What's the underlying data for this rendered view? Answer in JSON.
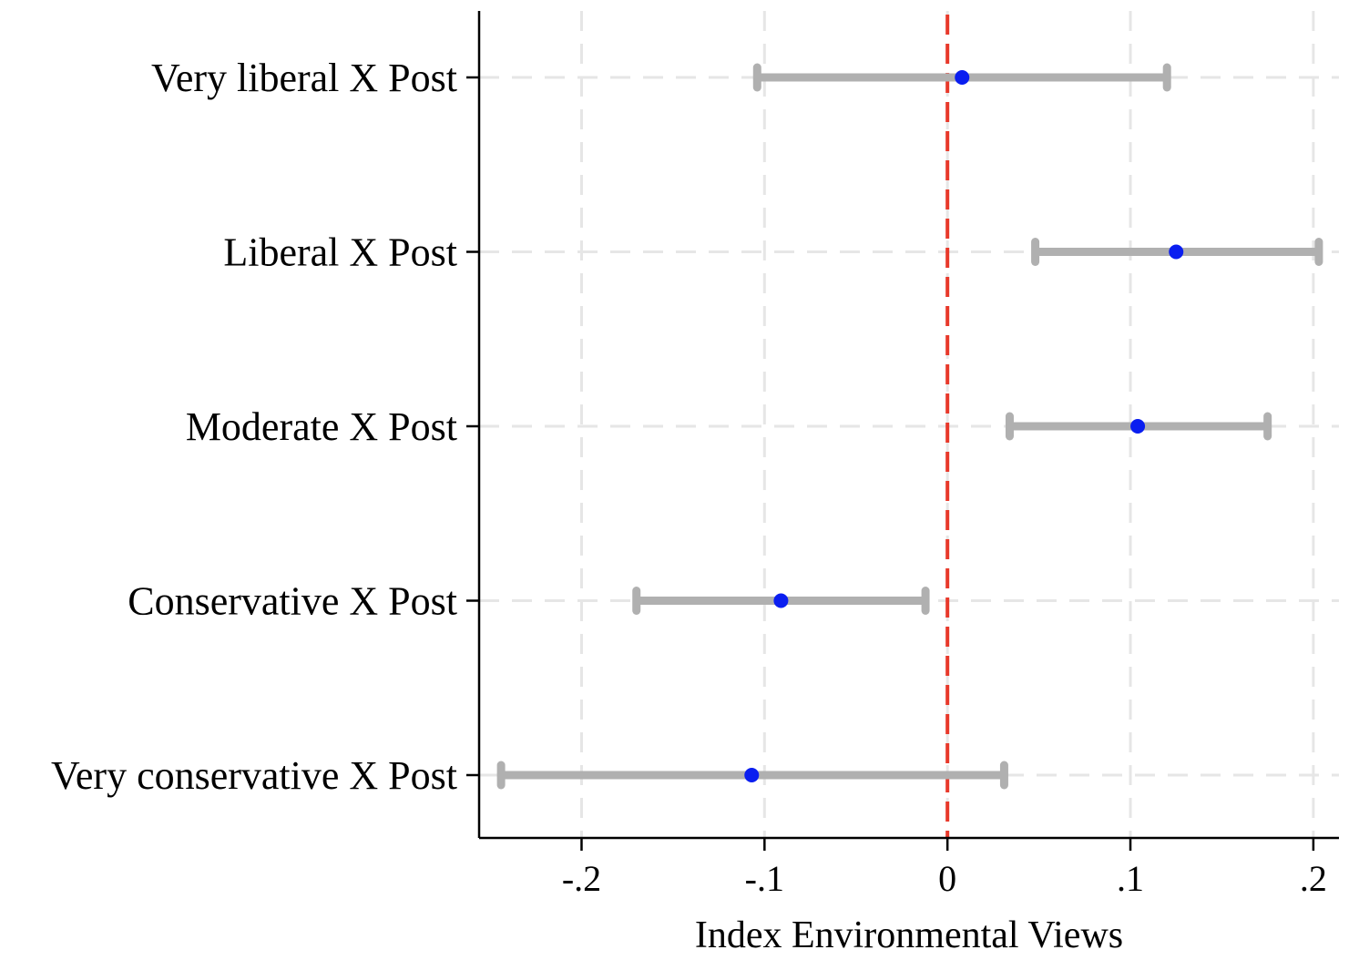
{
  "chart_data": {
    "type": "coefficient-plot",
    "title": "",
    "xlabel": "Index Environmental Views",
    "ylabel": "",
    "xlim": [
      -0.256,
      0.214
    ],
    "x_ticks": [
      {
        "value": -0.2,
        "label": "-.2"
      },
      {
        "value": -0.1,
        "label": "-.1"
      },
      {
        "value": 0,
        "label": "0"
      },
      {
        "value": 0.1,
        "label": ".1"
      },
      {
        "value": 0.2,
        "label": ".2"
      }
    ],
    "grid": true,
    "reference_line": {
      "x": 0,
      "color": "#e8392b",
      "style": "dashed"
    },
    "colors": {
      "point": "#0a1ef0",
      "interval": "#b0b0b0",
      "grid": "#e6e6e6",
      "axis": "#000000"
    },
    "items": [
      {
        "label": "Very liberal X Post",
        "estimate": 0.008,
        "ci_low": -0.104,
        "ci_high": 0.12
      },
      {
        "label": "Liberal X Post",
        "estimate": 0.125,
        "ci_low": 0.048,
        "ci_high": 0.203
      },
      {
        "label": "Moderate X Post",
        "estimate": 0.104,
        "ci_low": 0.034,
        "ci_high": 0.175
      },
      {
        "label": "Conservative X Post",
        "estimate": -0.091,
        "ci_low": -0.17,
        "ci_high": -0.012
      },
      {
        "label": "Very conservative X Post",
        "estimate": -0.107,
        "ci_low": -0.244,
        "ci_high": 0.031
      }
    ]
  }
}
